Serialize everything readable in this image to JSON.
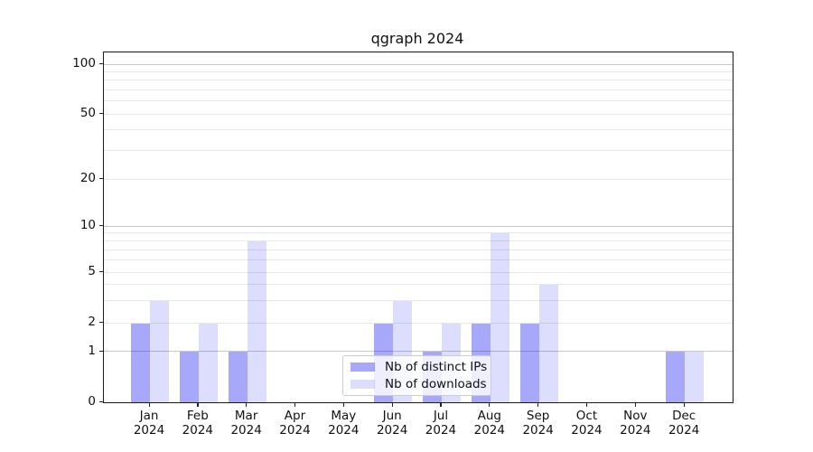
{
  "figure": {
    "title": "qgraph 2024"
  },
  "legend": {
    "items": [
      {
        "label": "Nb of distinct IPs",
        "series_key": "ips"
      },
      {
        "label": "Nb of downloads",
        "series_key": "downloads"
      }
    ]
  },
  "x_axis": {
    "labels": [
      {
        "month": "Jan",
        "year": "2024"
      },
      {
        "month": "Feb",
        "year": "2024"
      },
      {
        "month": "Mar",
        "year": "2024"
      },
      {
        "month": "Apr",
        "year": "2024"
      },
      {
        "month": "May",
        "year": "2024"
      },
      {
        "month": "Jun",
        "year": "2024"
      },
      {
        "month": "Jul",
        "year": "2024"
      },
      {
        "month": "Aug",
        "year": "2024"
      },
      {
        "month": "Sep",
        "year": "2024"
      },
      {
        "month": "Oct",
        "year": "2024"
      },
      {
        "month": "Nov",
        "year": "2024"
      },
      {
        "month": "Dec",
        "year": "2024"
      }
    ]
  },
  "y_axis": {
    "labels": [
      "0",
      "1",
      "2",
      "5",
      "10",
      "20",
      "50",
      "100"
    ]
  },
  "colors": {
    "ips_bar": "rgba(0,0,240,0.34)",
    "downloads_bar": "rgba(0,0,240,0.135)",
    "grid_major": "#c8c8c8",
    "grid_minor": "#e7e7e7",
    "spine": "#1a1a1a",
    "text": "#111111"
  },
  "chart_data": {
    "type": "bar",
    "title": "qgraph 2024",
    "categories": [
      "Jan 2024",
      "Feb 2024",
      "Mar 2024",
      "Apr 2024",
      "May 2024",
      "Jun 2024",
      "Jul 2024",
      "Aug 2024",
      "Sep 2024",
      "Oct 2024",
      "Nov 2024",
      "Dec 2024"
    ],
    "series": [
      {
        "name": "Nb of distinct IPs",
        "values": [
          2,
          1,
          1,
          0,
          0,
          2,
          1,
          2,
          2,
          0,
          0,
          1
        ]
      },
      {
        "name": "Nb of downloads",
        "values": [
          3,
          2,
          8,
          0,
          0,
          3,
          2,
          9,
          4,
          0,
          0,
          1
        ]
      }
    ],
    "xlabel": "",
    "ylabel": "",
    "yscale": "log-like with zero baseline",
    "y_ticks": [
      0,
      1,
      2,
      5,
      10,
      20,
      50,
      100
    ],
    "ylim": [
      0,
      140
    ],
    "grid": {
      "major_lines": [
        1,
        10,
        100
      ],
      "minor_lines": [
        2,
        3,
        4,
        5,
        6,
        7,
        8,
        9,
        20,
        30,
        40,
        50,
        60,
        70,
        80,
        90
      ]
    },
    "legend_position": "lower center (inside plot)"
  }
}
